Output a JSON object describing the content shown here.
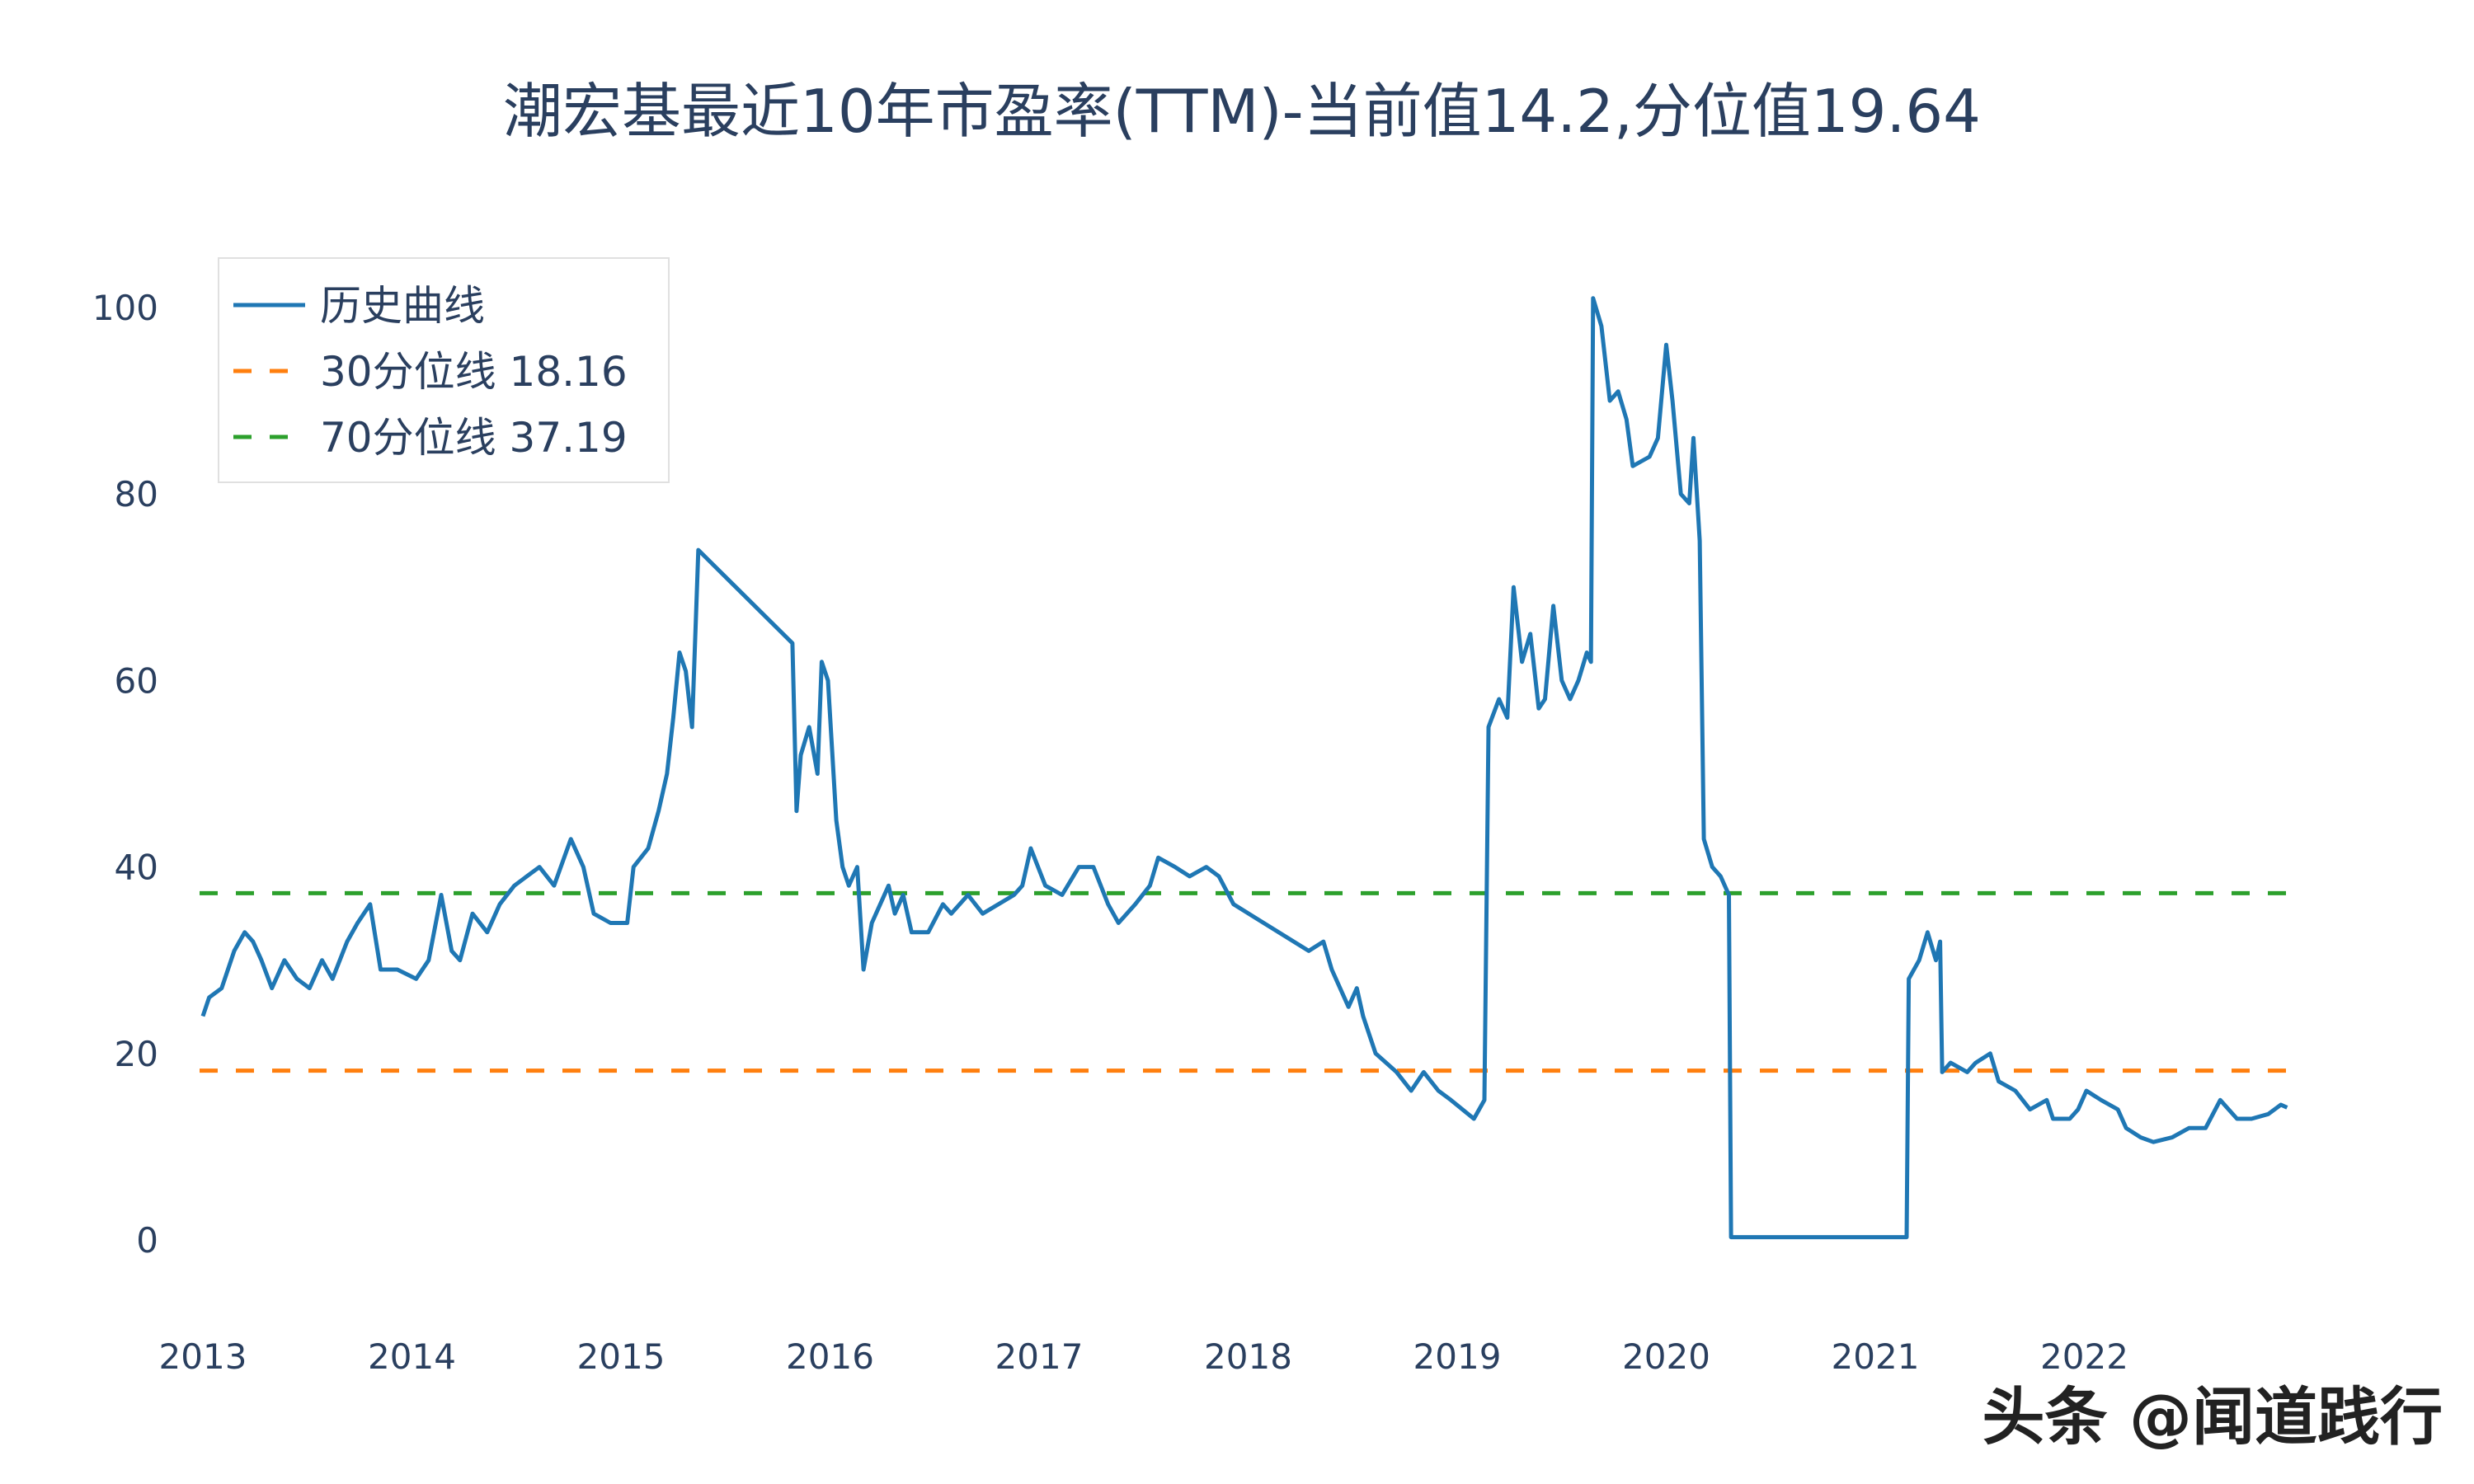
{
  "chart_data": {
    "type": "line",
    "title": "潮宏基最近10年市盈率(TTM)-当前值14.2,分位值19.64",
    "xlabel": "",
    "ylabel": "",
    "xlim": [
      2013.0,
      2023.0
    ],
    "ylim": [
      -8,
      104
    ],
    "x_ticks": [
      "2013",
      "2014",
      "2015",
      "2016",
      "2017",
      "2018",
      "2019",
      "2020",
      "2021",
      "2022"
    ],
    "y_ticks": [
      "0",
      "20",
      "40",
      "60",
      "80",
      "100"
    ],
    "grid": false,
    "legend_position": "top-left",
    "series": [
      {
        "name": "历史曲线",
        "color": "#1f77b4",
        "style": "solid",
        "x": [
          2013.0,
          2013.03,
          2013.09,
          2013.15,
          2013.2,
          2013.24,
          2013.28,
          2013.33,
          2013.39,
          2013.45,
          2013.51,
          2013.57,
          2013.62,
          2013.69,
          2013.74,
          2013.8,
          2013.85,
          2013.93,
          2014.02,
          2014.08,
          2014.14,
          2014.19,
          2014.23,
          2014.29,
          2014.36,
          2014.42,
          2014.49,
          2014.61,
          2014.68,
          2014.76,
          2014.82,
          2014.87,
          2014.95,
          2015.03,
          2015.06,
          2015.13,
          2015.18,
          2015.22,
          2015.25,
          2015.28,
          2015.31,
          2015.34,
          2015.37,
          2015.82,
          2015.84,
          2015.86,
          2015.9,
          2015.94,
          2015.96,
          2015.99,
          2016.03,
          2016.06,
          2016.09,
          2016.13,
          2016.16,
          2016.2,
          2016.28,
          2016.31,
          2016.35,
          2016.39,
          2016.47,
          2016.54,
          2016.58,
          2016.66,
          2016.73,
          2016.88,
          2016.92,
          2016.96,
          2017.03,
          2017.11,
          2017.19,
          2017.26,
          2017.33,
          2017.38,
          2017.46,
          2017.53,
          2017.57,
          2017.65,
          2017.72,
          2017.8,
          2017.86,
          2017.93,
          2018.29,
          2018.36,
          2018.4,
          2018.48,
          2018.52,
          2018.55,
          2018.61,
          2018.71,
          2018.78,
          2018.84,
          2018.91,
          2018.97,
          2019.08,
          2019.13,
          2019.15,
          2019.2,
          2019.24,
          2019.27,
          2019.31,
          2019.35,
          2019.39,
          2019.42,
          2019.46,
          2019.5,
          2019.54,
          2019.58,
          2019.62,
          2019.64,
          2019.65,
          2019.69,
          2019.73,
          2019.77,
          2019.81,
          2019.84,
          2019.92,
          2019.96,
          2020.0,
          2020.03,
          2020.07,
          2020.11,
          2020.13,
          2020.16,
          2020.18,
          2020.22,
          2020.26,
          2020.3,
          2020.31,
          2021.15,
          2021.16,
          2021.21,
          2021.25,
          2021.29,
          2021.31,
          2021.32,
          2021.36,
          2021.44,
          2021.48,
          2021.55,
          2021.59,
          2021.67,
          2021.74,
          2021.82,
          2021.85,
          2021.93,
          2021.97,
          2022.01,
          2022.08,
          2022.16,
          2022.2,
          2022.27,
          2022.33,
          2022.42,
          2022.5,
          2022.58,
          2022.65,
          2022.73,
          2022.8,
          2022.88,
          2022.94,
          2022.97
        ],
        "y": [
          24,
          26,
          27,
          31,
          33,
          32,
          30,
          27,
          30,
          28,
          27,
          30,
          28,
          32,
          34,
          36,
          29,
          29,
          28,
          30,
          37,
          31,
          30,
          35,
          33,
          36,
          38,
          40,
          38,
          43,
          40,
          35,
          34,
          34,
          40,
          42,
          46,
          50,
          56,
          63,
          61,
          55,
          74,
          64,
          46,
          52,
          55,
          50,
          62,
          60,
          45,
          40,
          38,
          40,
          29,
          34,
          38,
          35,
          37,
          33,
          33,
          36,
          35,
          37,
          35,
          37,
          38,
          42,
          38,
          37,
          40,
          40,
          36,
          34,
          36,
          38,
          41,
          40,
          39,
          40,
          39,
          36,
          31,
          32,
          29,
          25,
          27,
          24,
          20,
          18,
          16,
          18,
          16,
          15,
          13,
          15,
          55,
          58,
          56,
          70,
          62,
          65,
          57,
          58,
          68,
          60,
          58,
          60,
          63,
          62,
          101,
          98,
          90,
          91,
          88,
          83,
          84,
          86,
          96,
          90,
          80,
          79,
          86,
          75,
          43,
          40,
          39,
          37,
          0.3,
          0.3,
          28,
          30,
          33,
          30,
          32,
          18,
          19,
          18,
          19,
          20,
          17,
          16,
          14,
          15,
          13,
          13,
          14,
          16,
          15,
          14,
          12,
          11,
          10.5,
          11,
          12,
          12,
          15,
          13,
          13,
          13.5,
          14.5,
          14.2
        ]
      },
      {
        "name": "30分位线 18.16",
        "color": "#ff7f0e",
        "style": "dash",
        "value": 18.16
      },
      {
        "name": "70分位线 37.19",
        "color": "#2ca02c",
        "style": "dash",
        "value": 37.19
      }
    ]
  },
  "watermark": "头条 @闻道践行"
}
